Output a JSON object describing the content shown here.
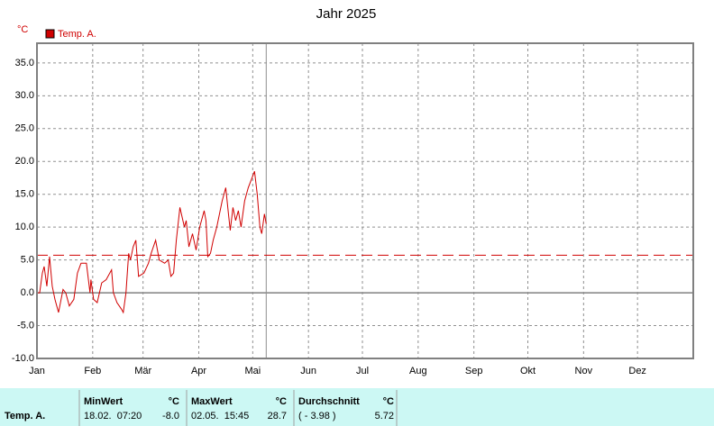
{
  "chart_data": {
    "type": "line",
    "title": "Jahr 2025",
    "ylabel": "°C",
    "series": [
      {
        "name": "Temp. A.",
        "color": "#d00000",
        "x": [
          0,
          1.5,
          3,
          4,
          5.5,
          7,
          8.5,
          10,
          12,
          14.5,
          16,
          18,
          20.5,
          22.5,
          24.5,
          27.5,
          29.5,
          30,
          31.5,
          33.5,
          36,
          38.5,
          41.5,
          42.5,
          44.5,
          47,
          48,
          49.5,
          51,
          52,
          53.5,
          55,
          56.5,
          59.5,
          62,
          63.5,
          66,
          68,
          71,
          73,
          74.5,
          76,
          77.5,
          79.5,
          82,
          83,
          84.5,
          86.5,
          88.5,
          90.5,
          93,
          94,
          95,
          96.5,
          98,
          100,
          103,
          105,
          106.5,
          107.5,
          109,
          110.5,
          112,
          113.5,
          115.5,
          117.5,
          121,
          122.5,
          124,
          125,
          126.5,
          127.5
        ],
        "values": [
          0,
          0,
          3,
          4,
          1,
          5.5,
          1,
          -1,
          -3,
          0.5,
          0,
          -2,
          -1,
          3,
          4.5,
          4.5,
          0,
          2,
          -1,
          -1.5,
          1.5,
          2,
          3.5,
          0,
          -1.5,
          -2.5,
          -3,
          0,
          6,
          5,
          7,
          8,
          2.5,
          3,
          4.5,
          6,
          8,
          5,
          4.5,
          5,
          2.5,
          3,
          8,
          13,
          10,
          11,
          7,
          9,
          6.5,
          10,
          12.5,
          11,
          5.5,
          6,
          8,
          10,
          14,
          16,
          12,
          9.5,
          13,
          11,
          12.5,
          10,
          14,
          16,
          18.5,
          15,
          10,
          9,
          12,
          10.5
        ]
      }
    ],
    "xlim": [
      0,
      365
    ],
    "xticks": [
      {
        "value": 0,
        "label": "Jan"
      },
      {
        "value": 31,
        "label": "Feb"
      },
      {
        "value": 59,
        "label": "Mär"
      },
      {
        "value": 90,
        "label": "Apr"
      },
      {
        "value": 120,
        "label": "Mai"
      },
      {
        "value": 151,
        "label": "Jun"
      },
      {
        "value": 181,
        "label": "Jul"
      },
      {
        "value": 212,
        "label": "Aug"
      },
      {
        "value": 243,
        "label": "Sep"
      },
      {
        "value": 273,
        "label": "Okt"
      },
      {
        "value": 304,
        "label": "Nov"
      },
      {
        "value": 334,
        "label": "Dez"
      }
    ],
    "ylim": [
      -10,
      38
    ],
    "yticks": [
      {
        "value": -10,
        "label": "-10.0"
      },
      {
        "value": -5,
        "label": "-5.0"
      },
      {
        "value": 0,
        "label": "0.0"
      },
      {
        "value": 5,
        "label": "5.0"
      },
      {
        "value": 10,
        "label": "10.0"
      },
      {
        "value": 15,
        "label": "15.0"
      },
      {
        "value": 20,
        "label": "20.0"
      },
      {
        "value": 25,
        "label": "25.0"
      },
      {
        "value": 30,
        "label": "30.0"
      },
      {
        "value": 35,
        "label": "35.0"
      }
    ],
    "grid": true,
    "cursor_x": 127.5,
    "stats": [
      {
        "name": "MinWert",
        "unit": "°C",
        "when": "18.02.  07:20",
        "value": -8.0,
        "label": "-8.0"
      },
      {
        "name": "MaxWert",
        "unit": "°C",
        "when": "02.05.  15:45",
        "value": 28.7,
        "label": "28.7"
      },
      {
        "name": "Durchschnitt",
        "unit": "°C",
        "when": "( - 3.98 )",
        "value": 5.72,
        "label": "5.72"
      }
    ]
  }
}
